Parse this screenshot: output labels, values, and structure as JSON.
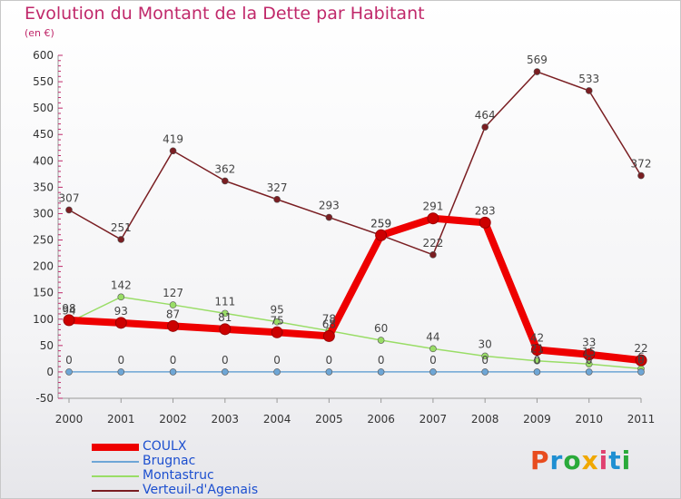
{
  "chart_data": {
    "type": "line",
    "title": "Evolution du Montant de la Dette par Habitant",
    "subtitle": "(en €)",
    "x": [
      "2000",
      "2001",
      "2002",
      "2003",
      "2004",
      "2005",
      "2006",
      "2007",
      "2008",
      "2009",
      "2010",
      "2011"
    ],
    "ylim": [
      -50,
      600
    ],
    "yticks": [
      -50,
      0,
      50,
      100,
      150,
      200,
      250,
      300,
      350,
      400,
      450,
      500,
      550,
      600
    ],
    "grid": false,
    "legend_position": "bottom-left",
    "series": [
      {
        "name": "Verteuil-d'Agenais",
        "color": "#7a1e22",
        "values": [
          307,
          251,
          419,
          362,
          327,
          293,
          259,
          222,
          464,
          569,
          533,
          372
        ],
        "labels": [
          "307",
          "251",
          "419",
          "362",
          "327",
          "293",
          "259",
          "222",
          "464",
          "569",
          "533",
          "372"
        ]
      },
      {
        "name": "Montastruc",
        "color": "#99dd66",
        "values": [
          94,
          142,
          127,
          111,
          95,
          78,
          60,
          44,
          30,
          21,
          15,
          6
        ],
        "labels": [
          "94",
          "142",
          "127",
          "111",
          "95",
          "78",
          "60",
          "44",
          "30",
          "21",
          "15",
          "6"
        ]
      },
      {
        "name": "Brugnac",
        "color": "#6ea6d6",
        "values": [
          0,
          0,
          0,
          0,
          0,
          0,
          0,
          0,
          0,
          0,
          0,
          0
        ],
        "labels": [
          "0",
          "0",
          "0",
          "0",
          "0",
          "0",
          "0",
          "0",
          "0",
          "0",
          "0",
          "0"
        ]
      },
      {
        "name": "COULX",
        "color": "#ee0000",
        "values": [
          98,
          93,
          87,
          81,
          75,
          68,
          259,
          291,
          283,
          42,
          33,
          22
        ],
        "labels": [
          "98",
          "93",
          "87",
          "81",
          "75",
          "68",
          "259",
          "291",
          "283",
          "42",
          "33",
          "22"
        ]
      }
    ],
    "legend": [
      "COULX",
      "Brugnac",
      "Montastruc",
      "Verteuil-d'Agenais"
    ]
  },
  "branding": {
    "text": "Proxiti",
    "colors": [
      "#e84c1e",
      "#1f8fd2",
      "#2aaa3a",
      "#f0a800",
      "#e04070",
      "#1f8fd2",
      "#2aaa3a"
    ]
  }
}
